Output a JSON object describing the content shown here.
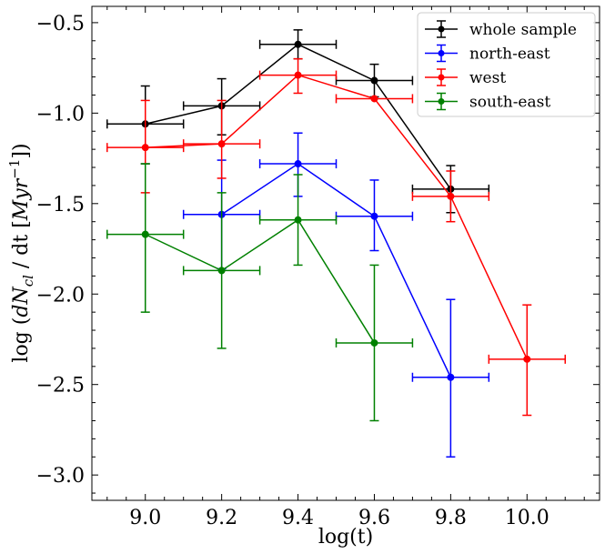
{
  "chart_data": {
    "type": "line",
    "title": "",
    "xlabel": "log(t)",
    "ylabel": "log (dN_cl / dt [Myr^-1])",
    "ylabel_parts": {
      "prefix": "log (",
      "d": "d",
      "N": "N",
      "cl": "cl",
      "mid": " / dt [",
      "unit": "Myr",
      "exp": "−1",
      "suffix": "])"
    },
    "xlim": [
      8.86,
      10.19
    ],
    "ylim": [
      -3.14,
      -0.41
    ],
    "xticks": [
      9.0,
      9.2,
      9.4,
      9.6,
      9.8,
      10.0
    ],
    "xtick_labels": [
      "9.0",
      "9.2",
      "9.4",
      "9.6",
      "9.8",
      "10.0"
    ],
    "yticks": [
      -3.0,
      -2.5,
      -2.0,
      -1.5,
      -1.0,
      -0.5
    ],
    "ytick_labels": [
      "−3.0",
      "−2.5",
      "−2.0",
      "−1.5",
      "−1.0",
      "−0.5"
    ],
    "legend_position": "top-right",
    "series": [
      {
        "name": "whole sample",
        "color": "#000000",
        "x": [
          9.0,
          9.2,
          9.4,
          9.6,
          9.8
        ],
        "y": [
          -1.06,
          -0.96,
          -0.62,
          -0.82,
          -1.42
        ],
        "xerr": [
          0.1,
          0.1,
          0.1,
          0.1,
          0.1
        ],
        "yerr_lo": [
          0.22,
          0.16,
          0.08,
          0.09,
          0.13
        ],
        "yerr_hi": [
          0.21,
          0.15,
          0.08,
          0.09,
          0.13
        ]
      },
      {
        "name": "north-east",
        "color": "#0000ff",
        "x": [
          9.2,
          9.4,
          9.6,
          9.8
        ],
        "y": [
          -1.56,
          -1.28,
          -1.57,
          -2.46
        ],
        "xerr": [
          0.1,
          0.1,
          0.1,
          0.1
        ],
        "yerr_lo": [
          0.3,
          0.18,
          0.19,
          0.44
        ],
        "yerr_hi": [
          0.3,
          0.17,
          0.2,
          0.43
        ]
      },
      {
        "name": "west",
        "color": "#ff0000",
        "x": [
          9.0,
          9.2,
          9.4,
          9.6,
          9.8,
          10.0
        ],
        "y": [
          -1.19,
          -1.17,
          -0.79,
          -0.92,
          -1.46,
          -2.36
        ],
        "xerr": [
          0.1,
          0.1,
          0.1,
          0.1,
          0.1,
          0.1
        ],
        "yerr_lo": [
          0.25,
          0.19,
          0.1,
          0.0,
          0.14,
          0.31
        ],
        "yerr_hi": [
          0.26,
          0.24,
          0.09,
          0.0,
          0.14,
          0.3
        ]
      },
      {
        "name": "south-east",
        "color": "#008000",
        "x": [
          9.0,
          9.2,
          9.4,
          9.6
        ],
        "y": [
          -1.67,
          -1.87,
          -1.59,
          -2.27
        ],
        "xerr": [
          0.1,
          0.1,
          0.1,
          0.1
        ],
        "yerr_lo": [
          0.43,
          0.43,
          0.25,
          0.43
        ],
        "yerr_hi": [
          0.39,
          0.43,
          0.25,
          0.43
        ]
      }
    ]
  }
}
